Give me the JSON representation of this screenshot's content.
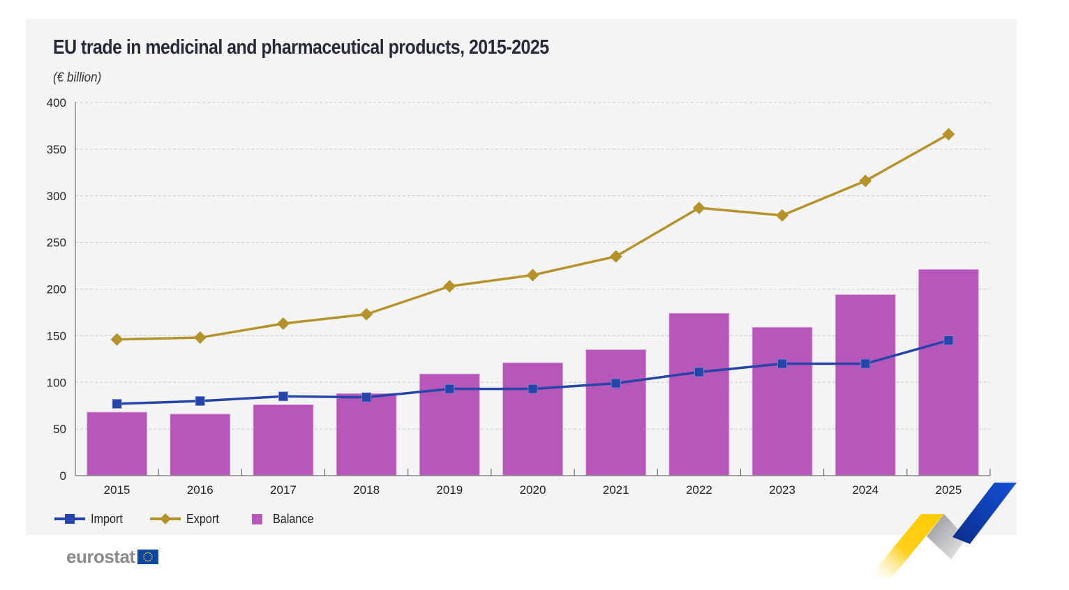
{
  "header": {
    "title": "EU trade in medicinal and pharmaceutical products, 2015-2025",
    "unit": "(€ billion)"
  },
  "legend": [
    {
      "key": "import",
      "label": "Import",
      "color": "#2645a8",
      "marker": "square"
    },
    {
      "key": "export",
      "label": "Export",
      "color": "#b5922a",
      "marker": "diamond"
    },
    {
      "key": "balance",
      "label": "Balance",
      "color": "#b757ba",
      "marker": "bar"
    }
  ],
  "branding": {
    "logo_text": "eurostat",
    "flag_icon": "eu-flag-icon"
  },
  "chart_data": {
    "type": "bar+line",
    "title": "EU trade in medicinal and pharmaceutical products, 2015-2025",
    "ylabel": "€ billion",
    "xlabel": "",
    "ylim": [
      0,
      400
    ],
    "yticks": [
      0,
      50,
      100,
      150,
      200,
      250,
      300,
      350,
      400
    ],
    "grid": true,
    "legend_position": "bottom-left",
    "categories": [
      "2015",
      "2016",
      "2017",
      "2018",
      "2019",
      "2020",
      "2021",
      "2022",
      "2023",
      "2024",
      "2025"
    ],
    "series": [
      {
        "name": "Balance",
        "type": "bar",
        "color": "#b757ba",
        "values": [
          68,
          66,
          76,
          88,
          109,
          121,
          135,
          174,
          159,
          194,
          221
        ]
      },
      {
        "name": "Import",
        "type": "line",
        "marker": "square",
        "color": "#2645a8",
        "values": [
          77,
          80,
          85,
          84,
          93,
          93,
          99,
          111,
          120,
          120,
          145
        ]
      },
      {
        "name": "Export",
        "type": "line",
        "marker": "diamond",
        "color": "#b5922a",
        "values": [
          146,
          148,
          163,
          173,
          203,
          215,
          235,
          287,
          279,
          316,
          366
        ]
      }
    ]
  }
}
